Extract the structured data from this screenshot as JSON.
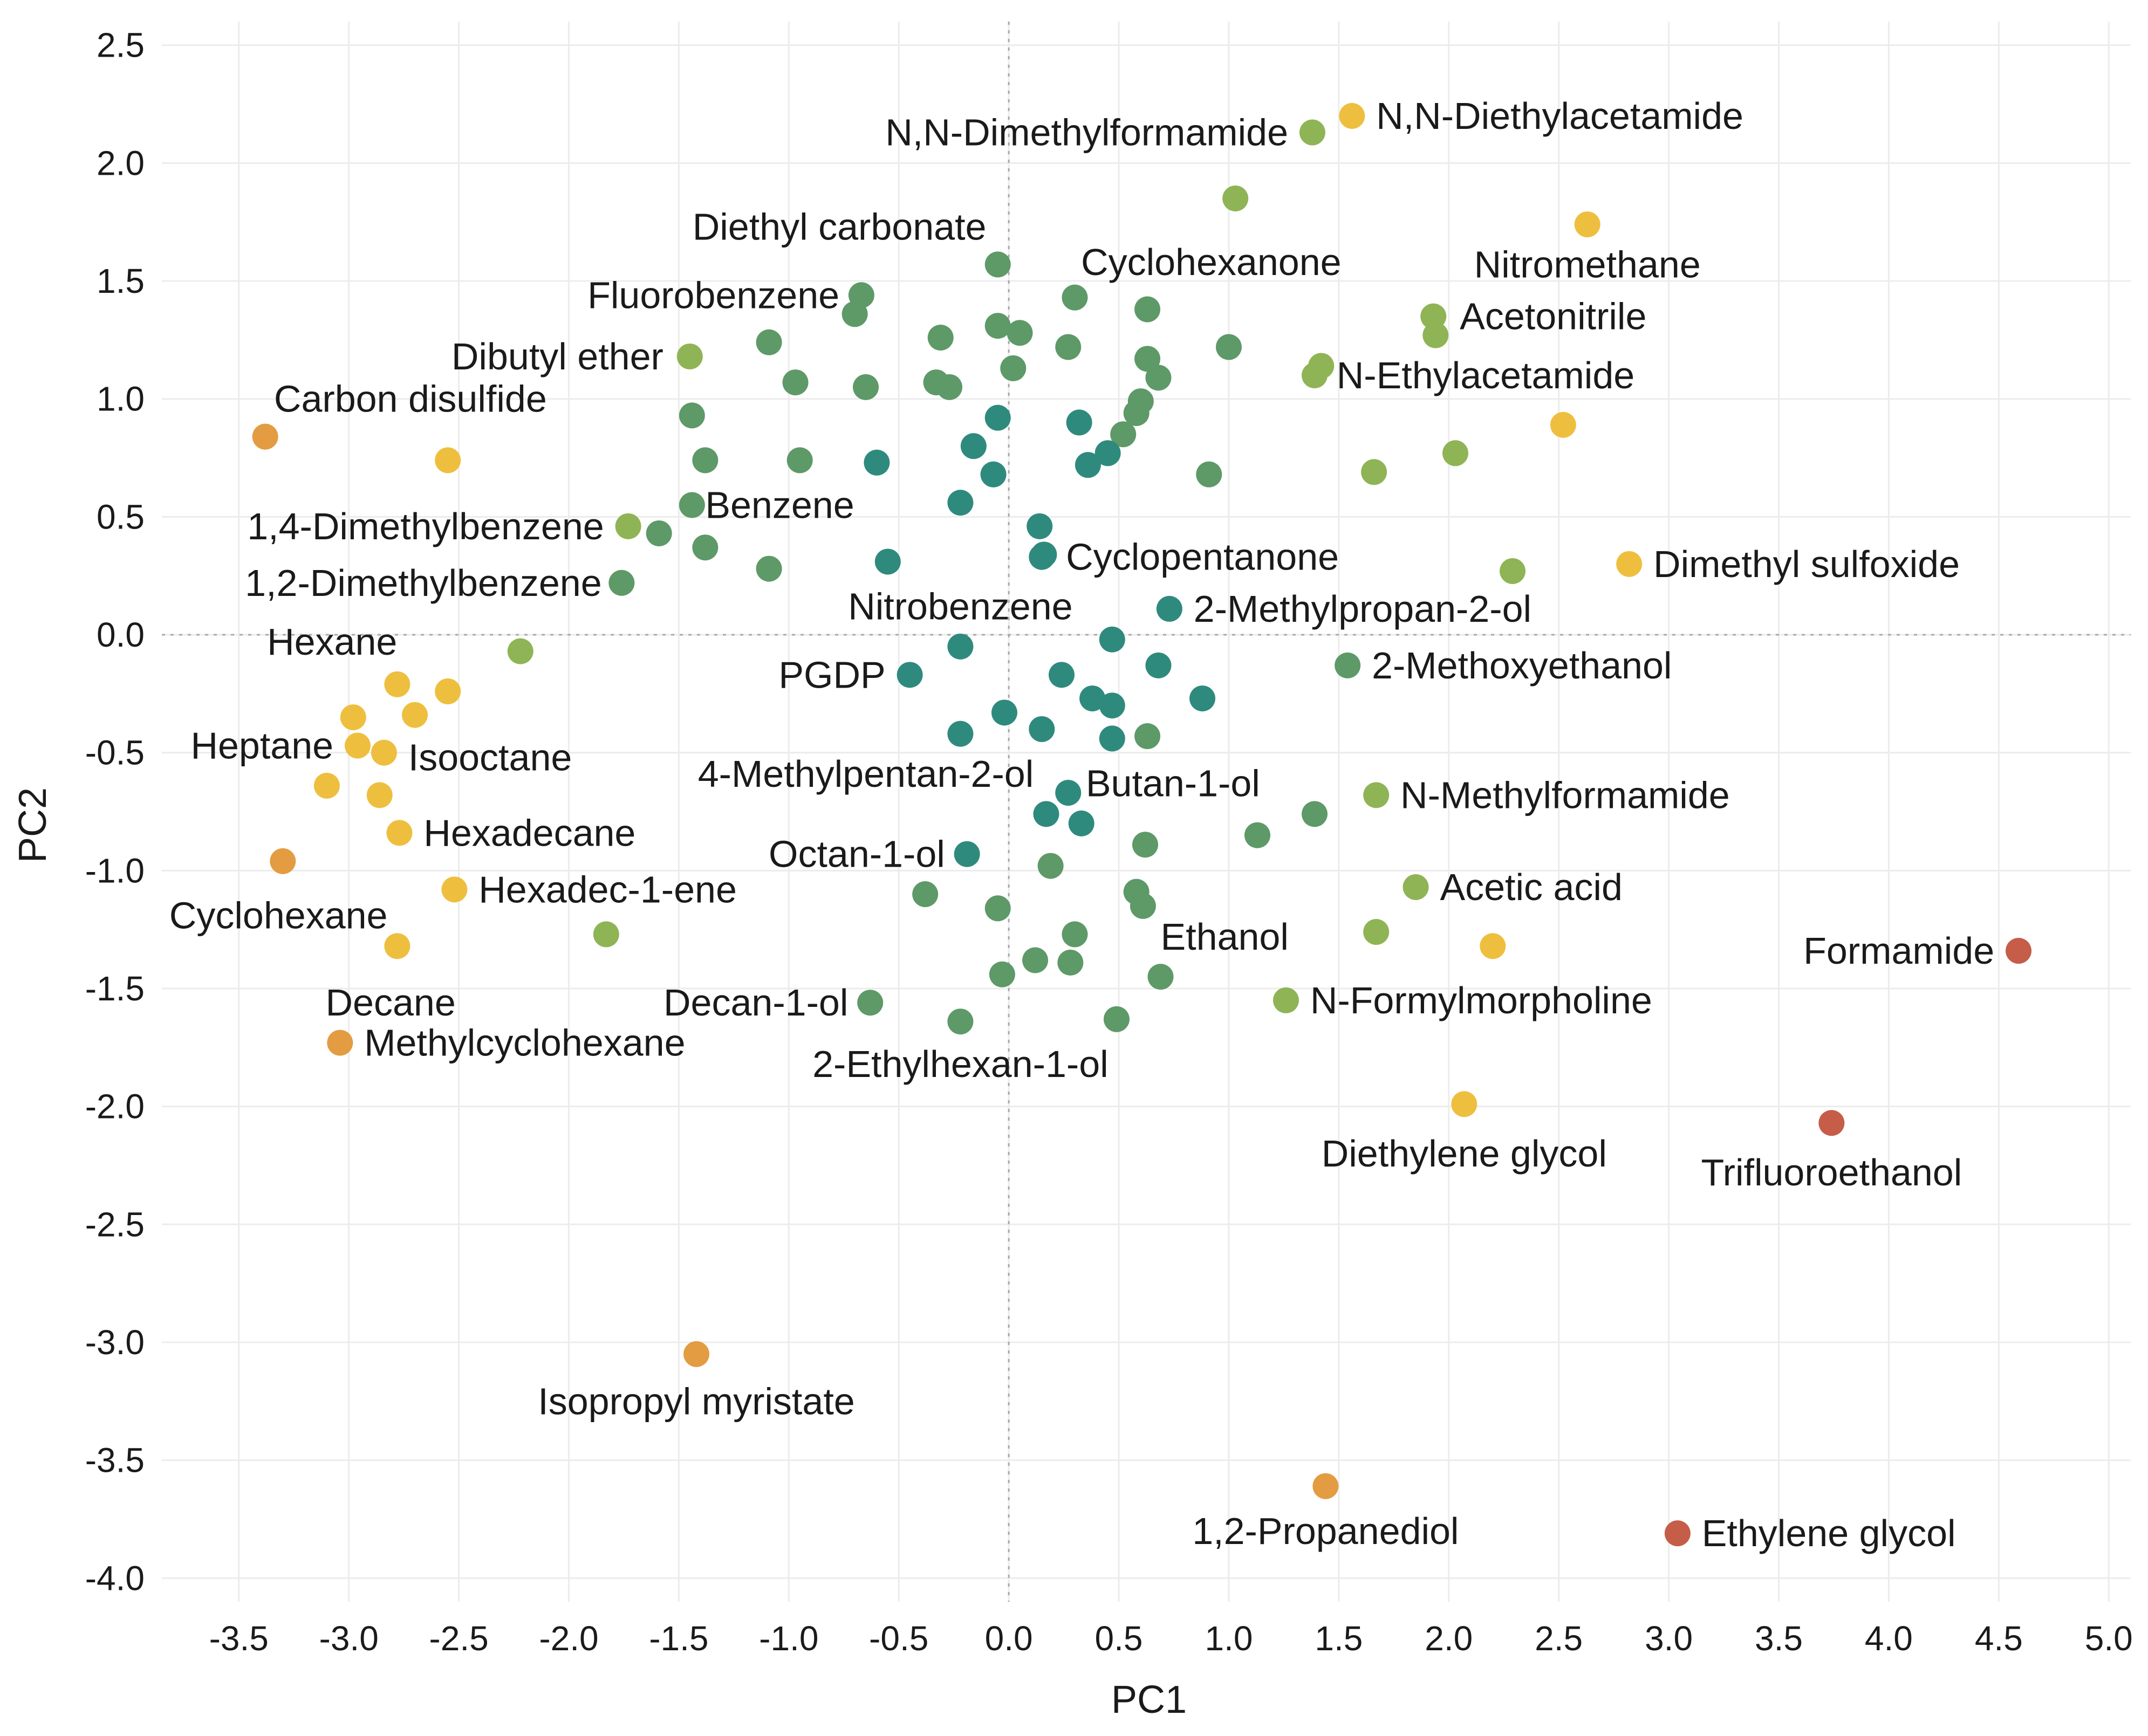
{
  "chart_data": {
    "type": "scatter",
    "title": "",
    "xlabel": "PC1",
    "ylabel": "PC2",
    "xlim": [
      -3.85,
      5.1
    ],
    "ylim": [
      -4.1,
      2.6
    ],
    "xticks": [
      -3.5,
      -3.0,
      -2.5,
      -2.0,
      -1.5,
      -1.0,
      -0.5,
      0.0,
      0.5,
      1.0,
      1.5,
      2.0,
      2.5,
      3.0,
      3.5,
      4.0,
      4.5,
      5.0
    ],
    "xtick_labels": [
      "-3.5",
      "-3.0",
      "-2.5",
      "-2.0",
      "-1.5",
      "-1.0",
      "-0.5",
      "0.0",
      "0.5",
      "1.0",
      "1.5",
      "2.0",
      "2.5",
      "3.0",
      "3.5",
      "4.0",
      "4.5",
      "5.0"
    ],
    "yticks": [
      2.5,
      2.0,
      1.5,
      1.0,
      0.5,
      0.0,
      -0.5,
      -1.0,
      -1.5,
      -2.0,
      -2.5,
      -3.0,
      -3.5,
      -4.0
    ],
    "ytick_labels": [
      "2.5",
      "2.0",
      "1.5",
      "1.0",
      "0.5",
      "0.0",
      "-0.5",
      "-1.0",
      "-1.5",
      "-2.0",
      "-2.5",
      "-3.0",
      "-3.5",
      "-4.0"
    ],
    "grid": true,
    "zero_lines": true,
    "colors": {
      "teal": "#2f8a7e",
      "green": "#5e9968",
      "olive": "#8fb455",
      "yellow": "#eebf3f",
      "orange": "#e39c41",
      "red": "#c55d49"
    },
    "points": [
      {
        "x": 1.38,
        "y": 2.13,
        "c": "olive",
        "label": "N,N-Dimethylformamide",
        "anchor": "end",
        "lx": 1.27,
        "ly": 2.13
      },
      {
        "x": 1.56,
        "y": 2.2,
        "c": "yellow",
        "label": "N,N-Diethylacetamide",
        "anchor": "start",
        "lx": 1.67,
        "ly": 2.2
      },
      {
        "x": 1.03,
        "y": 1.85,
        "c": "olive"
      },
      {
        "x": 2.63,
        "y": 1.74,
        "c": "yellow",
        "label": "Nitromethane",
        "anchor": "middle",
        "lx": 2.63,
        "ly": 1.57
      },
      {
        "x": -0.05,
        "y": 1.57,
        "c": "green",
        "label": "Diethyl carbonate",
        "anchor": "middle",
        "lx": -0.77,
        "ly": 1.73
      },
      {
        "x": -0.67,
        "y": 1.44,
        "c": "green",
        "label": "Fluorobenzene",
        "anchor": "end",
        "lx": -0.77,
        "ly": 1.44
      },
      {
        "x": -0.7,
        "y": 1.36,
        "c": "green"
      },
      {
        "x": 0.3,
        "y": 1.43,
        "c": "green",
        "label": "Cyclohexanone",
        "anchor": "middle",
        "lx": 0.92,
        "ly": 1.58
      },
      {
        "x": 0.63,
        "y": 1.38,
        "c": "green"
      },
      {
        "x": 1.93,
        "y": 1.35,
        "c": "olive",
        "label": "Acetonitrile",
        "anchor": "start",
        "lx": 2.05,
        "ly": 1.35
      },
      {
        "x": 1.94,
        "y": 1.27,
        "c": "olive"
      },
      {
        "x": -0.05,
        "y": 1.31,
        "c": "green"
      },
      {
        "x": 0.05,
        "y": 1.28,
        "c": "green"
      },
      {
        "x": -0.31,
        "y": 1.26,
        "c": "green"
      },
      {
        "x": -1.09,
        "y": 1.24,
        "c": "green"
      },
      {
        "x": 0.27,
        "y": 1.22,
        "c": "green"
      },
      {
        "x": 1.0,
        "y": 1.22,
        "c": "green"
      },
      {
        "x": -1.45,
        "y": 1.18,
        "c": "olive",
        "label": "Dibutyl ether",
        "anchor": "end",
        "lx": -1.57,
        "ly": 1.18
      },
      {
        "x": 0.63,
        "y": 1.17,
        "c": "green"
      },
      {
        "x": 0.02,
        "y": 1.13,
        "c": "green"
      },
      {
        "x": 1.42,
        "y": 1.14,
        "c": "olive"
      },
      {
        "x": 1.39,
        "y": 1.1,
        "c": "olive",
        "label": "N-Ethylacetamide",
        "anchor": "start",
        "lx": 1.49,
        "ly": 1.1
      },
      {
        "x": 0.68,
        "y": 1.09,
        "c": "green"
      },
      {
        "x": -0.97,
        "y": 1.07,
        "c": "green"
      },
      {
        "x": -0.65,
        "y": 1.05,
        "c": "green"
      },
      {
        "x": -0.33,
        "y": 1.07,
        "c": "green"
      },
      {
        "x": -0.27,
        "y": 1.05,
        "c": "green"
      },
      {
        "x": 0.6,
        "y": 0.99,
        "c": "green"
      },
      {
        "x": 0.58,
        "y": 0.94,
        "c": "green"
      },
      {
        "x": -1.44,
        "y": 0.93,
        "c": "green"
      },
      {
        "x": -0.05,
        "y": 0.92,
        "c": "teal"
      },
      {
        "x": 0.32,
        "y": 0.9,
        "c": "teal"
      },
      {
        "x": 0.52,
        "y": 0.85,
        "c": "green"
      },
      {
        "x": 2.52,
        "y": 0.89,
        "c": "yellow"
      },
      {
        "x": -3.38,
        "y": 0.84,
        "c": "orange",
        "label": "Carbon disulfide",
        "anchor": "middle",
        "lx": -2.72,
        "ly": 1.0
      },
      {
        "x": -2.55,
        "y": 0.74,
        "c": "yellow"
      },
      {
        "x": -0.16,
        "y": 0.8,
        "c": "teal"
      },
      {
        "x": 0.45,
        "y": 0.77,
        "c": "teal"
      },
      {
        "x": 2.03,
        "y": 0.77,
        "c": "olive"
      },
      {
        "x": -1.38,
        "y": 0.74,
        "c": "green"
      },
      {
        "x": -0.95,
        "y": 0.74,
        "c": "green"
      },
      {
        "x": -0.6,
        "y": 0.73,
        "c": "teal"
      },
      {
        "x": 0.36,
        "y": 0.72,
        "c": "teal"
      },
      {
        "x": -0.07,
        "y": 0.68,
        "c": "teal"
      },
      {
        "x": 0.91,
        "y": 0.68,
        "c": "green"
      },
      {
        "x": 1.66,
        "y": 0.69,
        "c": "olive"
      },
      {
        "x": 2.82,
        "y": 0.3,
        "c": "yellow",
        "label": "Dimethyl sulfoxide",
        "anchor": "start",
        "lx": 2.93,
        "ly": 0.3
      },
      {
        "x": -1.73,
        "y": 0.46,
        "c": "olive",
        "label": "1,4-Dimethylbenzene",
        "anchor": "end",
        "lx": -1.84,
        "ly": 0.46
      },
      {
        "x": -1.44,
        "y": 0.55,
        "c": "green",
        "label": "Benzene",
        "anchor": "start",
        "lx": -1.38,
        "ly": 0.55
      },
      {
        "x": -0.22,
        "y": 0.56,
        "c": "teal"
      },
      {
        "x": -1.59,
        "y": 0.43,
        "c": "green"
      },
      {
        "x": 0.14,
        "y": 0.46,
        "c": "teal"
      },
      {
        "x": -1.38,
        "y": 0.37,
        "c": "green"
      },
      {
        "x": 0.16,
        "y": 0.34,
        "c": "teal"
      },
      {
        "x": 0.15,
        "y": 0.33,
        "c": "teal",
        "label": "Cyclopentanone",
        "anchor": "start",
        "lx": 0.26,
        "ly": 0.33
      },
      {
        "x": -1.09,
        "y": 0.28,
        "c": "green"
      },
      {
        "x": -0.55,
        "y": 0.31,
        "c": "teal"
      },
      {
        "x": 2.29,
        "y": 0.27,
        "c": "olive"
      },
      {
        "x": -1.76,
        "y": 0.22,
        "c": "green",
        "label": "1,2-Dimethylbenzene",
        "anchor": "end",
        "lx": -1.85,
        "ly": 0.22
      },
      {
        "x": 0.73,
        "y": 0.11,
        "c": "teal",
        "label": "2-Methylpropan-2-ol",
        "anchor": "start",
        "lx": 0.84,
        "ly": 0.11
      },
      {
        "x": 0.47,
        "y": -0.02,
        "c": "teal",
        "label": "Nitrobenzene",
        "anchor": "middle",
        "lx": -0.22,
        "ly": 0.12
      },
      {
        "x": -0.22,
        "y": -0.05,
        "c": "teal"
      },
      {
        "x": -2.22,
        "y": -0.07,
        "c": "olive",
        "label": "Hexane",
        "anchor": "end",
        "lx": -2.78,
        "ly": -0.03
      },
      {
        "x": 1.54,
        "y": -0.13,
        "c": "green",
        "label": "2-Methoxyethanol",
        "anchor": "start",
        "lx": 1.65,
        "ly": -0.13
      },
      {
        "x": 0.68,
        "y": -0.13,
        "c": "teal"
      },
      {
        "x": -0.45,
        "y": -0.17,
        "c": "teal",
        "label": "PGDP",
        "anchor": "end",
        "lx": -0.56,
        "ly": -0.17
      },
      {
        "x": 0.24,
        "y": -0.17,
        "c": "teal"
      },
      {
        "x": -2.78,
        "y": -0.21,
        "c": "yellow"
      },
      {
        "x": -2.55,
        "y": -0.24,
        "c": "yellow"
      },
      {
        "x": 0.38,
        "y": -0.27,
        "c": "teal"
      },
      {
        "x": 0.88,
        "y": -0.27,
        "c": "teal"
      },
      {
        "x": 0.47,
        "y": -0.3,
        "c": "teal"
      },
      {
        "x": -0.02,
        "y": -0.33,
        "c": "teal"
      },
      {
        "x": -2.98,
        "y": -0.35,
        "c": "yellow"
      },
      {
        "x": -2.7,
        "y": -0.34,
        "c": "yellow"
      },
      {
        "x": -0.22,
        "y": -0.42,
        "c": "teal"
      },
      {
        "x": 0.15,
        "y": -0.4,
        "c": "teal"
      },
      {
        "x": 0.47,
        "y": -0.44,
        "c": "teal"
      },
      {
        "x": 0.63,
        "y": -0.43,
        "c": "green"
      },
      {
        "x": -2.96,
        "y": -0.47,
        "c": "yellow",
        "label": "Heptane",
        "anchor": "end",
        "lx": -3.07,
        "ly": -0.47
      },
      {
        "x": -2.84,
        "y": -0.5,
        "c": "yellow",
        "label": "Isooctane",
        "anchor": "start",
        "lx": -2.73,
        "ly": -0.52
      },
      {
        "x": -3.1,
        "y": -0.64,
        "c": "yellow"
      },
      {
        "x": -2.86,
        "y": -0.68,
        "c": "yellow"
      },
      {
        "x": 0.27,
        "y": -0.67,
        "c": "teal",
        "label": "Butan-1-ol",
        "anchor": "start",
        "lx": 0.35,
        "ly": -0.63
      },
      {
        "x": 0.17,
        "y": -0.76,
        "c": "teal",
        "label": "4-Methylpentan-2-ol",
        "anchor": "middle",
        "lx": -0.65,
        "ly": -0.59
      },
      {
        "x": 0.33,
        "y": -0.8,
        "c": "teal"
      },
      {
        "x": 1.39,
        "y": -0.76,
        "c": "green"
      },
      {
        "x": 1.67,
        "y": -0.68,
        "c": "olive",
        "label": "N-Methylformamide",
        "anchor": "start",
        "lx": 1.78,
        "ly": -0.68
      },
      {
        "x": -2.77,
        "y": -0.84,
        "c": "yellow",
        "label": "Hexadecane",
        "anchor": "start",
        "lx": -2.66,
        "ly": -0.84
      },
      {
        "x": 1.13,
        "y": -0.85,
        "c": "green"
      },
      {
        "x": 0.62,
        "y": -0.89,
        "c": "green"
      },
      {
        "x": -0.19,
        "y": -0.93,
        "c": "teal",
        "label": "Octan-1-ol",
        "anchor": "end",
        "lx": -0.29,
        "ly": -0.93
      },
      {
        "x": -3.3,
        "y": -0.96,
        "c": "orange",
        "label": "Cyclohexane",
        "anchor": "middle",
        "lx": -3.32,
        "ly": -1.19
      },
      {
        "x": 0.19,
        "y": -0.98,
        "c": "green"
      },
      {
        "x": -2.52,
        "y": -1.08,
        "c": "yellow",
        "label": "Hexadec-1-ene",
        "anchor": "start",
        "lx": -2.41,
        "ly": -1.08
      },
      {
        "x": -0.38,
        "y": -1.1,
        "c": "green"
      },
      {
        "x": 0.58,
        "y": -1.09,
        "c": "green"
      },
      {
        "x": 0.61,
        "y": -1.15,
        "c": "green",
        "label": "Ethanol",
        "anchor": "start",
        "lx": 0.69,
        "ly": -1.28
      },
      {
        "x": 1.85,
        "y": -1.07,
        "c": "olive",
        "label": "Acetic acid",
        "anchor": "start",
        "lx": 1.96,
        "ly": -1.07
      },
      {
        "x": -0.05,
        "y": -1.16,
        "c": "green"
      },
      {
        "x": -1.83,
        "y": -1.27,
        "c": "olive"
      },
      {
        "x": 0.3,
        "y": -1.27,
        "c": "green"
      },
      {
        "x": 1.67,
        "y": -1.26,
        "c": "olive"
      },
      {
        "x": 2.2,
        "y": -1.32,
        "c": "yellow"
      },
      {
        "x": -2.78,
        "y": -1.32,
        "c": "yellow",
        "label": "Decane",
        "anchor": "middle",
        "lx": -2.81,
        "ly": -1.56
      },
      {
        "x": 4.59,
        "y": -1.34,
        "c": "red",
        "label": "Formamide",
        "anchor": "end",
        "lx": 4.48,
        "ly": -1.34
      },
      {
        "x": 0.12,
        "y": -1.38,
        "c": "green"
      },
      {
        "x": 0.28,
        "y": -1.39,
        "c": "green"
      },
      {
        "x": -0.03,
        "y": -1.44,
        "c": "green"
      },
      {
        "x": 0.69,
        "y": -1.45,
        "c": "green"
      },
      {
        "x": 1.26,
        "y": -1.55,
        "c": "olive",
        "label": "N-Formylmorpholine",
        "anchor": "start",
        "lx": 1.37,
        "ly": -1.55
      },
      {
        "x": -0.63,
        "y": -1.56,
        "c": "green",
        "label": "Decan-1-ol",
        "anchor": "end",
        "lx": -0.73,
        "ly": -1.56
      },
      {
        "x": -0.22,
        "y": -1.64,
        "c": "green",
        "label": "2-Ethylhexan-1-ol",
        "anchor": "middle",
        "lx": -0.22,
        "ly": -1.82
      },
      {
        "x": 0.49,
        "y": -1.63,
        "c": "green"
      },
      {
        "x": -3.04,
        "y": -1.73,
        "c": "orange",
        "label": "Methylcyclohexane",
        "anchor": "start",
        "lx": -2.93,
        "ly": -1.73
      },
      {
        "x": 2.07,
        "y": -1.99,
        "c": "yellow",
        "label": "Diethylene glycol",
        "anchor": "middle",
        "lx": 2.07,
        "ly": -2.2
      },
      {
        "x": 3.74,
        "y": -2.07,
        "c": "red",
        "label": "Trifluoroethanol",
        "anchor": "middle",
        "lx": 3.74,
        "ly": -2.28
      },
      {
        "x": -1.42,
        "y": -3.05,
        "c": "orange",
        "label": "Isopropyl myristate",
        "anchor": "middle",
        "lx": -1.42,
        "ly": -3.25
      },
      {
        "x": 1.44,
        "y": -3.61,
        "c": "orange",
        "label": "1,2-Propanediol",
        "anchor": "middle",
        "lx": 1.44,
        "ly": -3.8
      },
      {
        "x": 3.04,
        "y": -3.81,
        "c": "red",
        "label": "Ethylene glycol",
        "anchor": "start",
        "lx": 3.15,
        "ly": -3.81
      }
    ]
  }
}
